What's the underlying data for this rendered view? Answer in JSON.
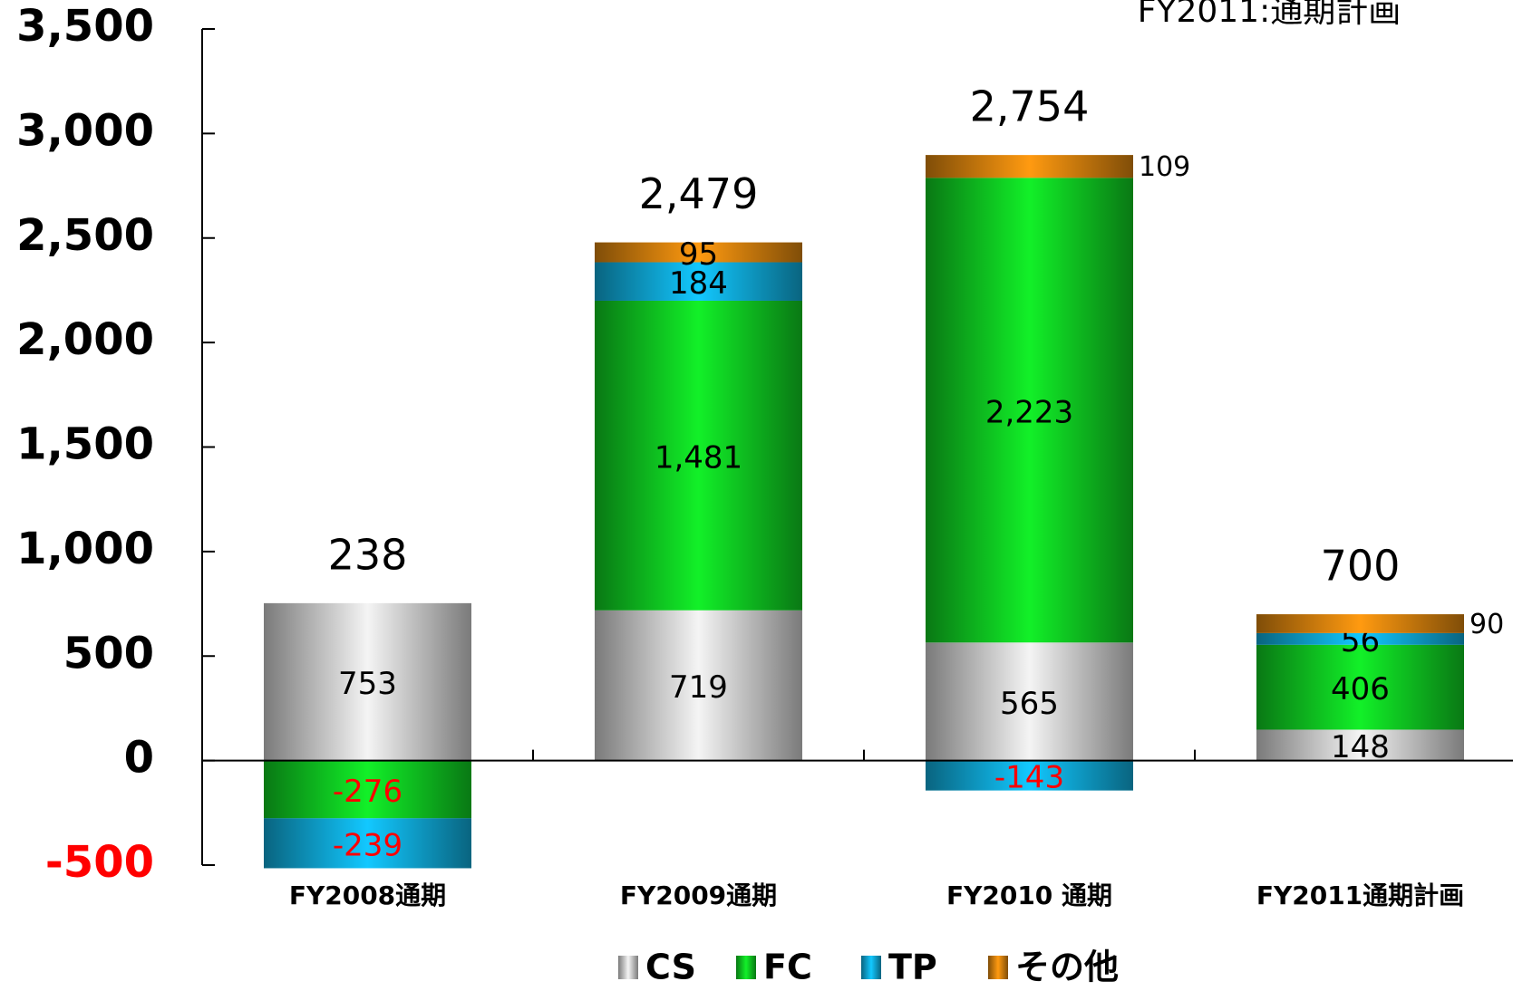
{
  "chart_data": {
    "type": "stacked_bar",
    "annotation": "FY2011:通期計画",
    "categories": [
      "FY2008通期",
      "FY2009通期",
      "FY2010 通期",
      "FY2011通期計画"
    ],
    "series": [
      {
        "name": "CS",
        "color": "#f4f4f4",
        "values": [
          753,
          719,
          565,
          148
        ]
      },
      {
        "name": "FC",
        "color": "#12f028",
        "values": [
          -276,
          1481,
          2223,
          406
        ],
        "value_labels": [
          "-276",
          "1,481",
          "2,223",
          "406"
        ]
      },
      {
        "name": "TP",
        "color": "#12c8ff",
        "values": [
          -239,
          184,
          -143,
          56
        ]
      },
      {
        "name": "その他",
        "color": "#ff9a10",
        "values": [
          null,
          95,
          109,
          90
        ]
      }
    ],
    "totals": {
      "values": [
        238,
        2479,
        2754,
        700
      ],
      "value_labels": [
        "238",
        "2,479",
        "2,754",
        "700"
      ]
    },
    "ylim": [
      -500,
      3500
    ],
    "yticks": [
      -500,
      0,
      {
        "value": 500,
        "label": "500"
      },
      {
        "value": 1000,
        "label": "1,000"
      },
      {
        "value": 1500,
        "label": "1,500"
      },
      {
        "value": 2000,
        "label": "2,000"
      },
      {
        "value": 2500,
        "label": "2,500"
      },
      {
        "value": 3000,
        "label": "3,000"
      },
      {
        "value": 3500,
        "label": "3,500"
      }
    ],
    "negative_color": "#ff0000"
  }
}
